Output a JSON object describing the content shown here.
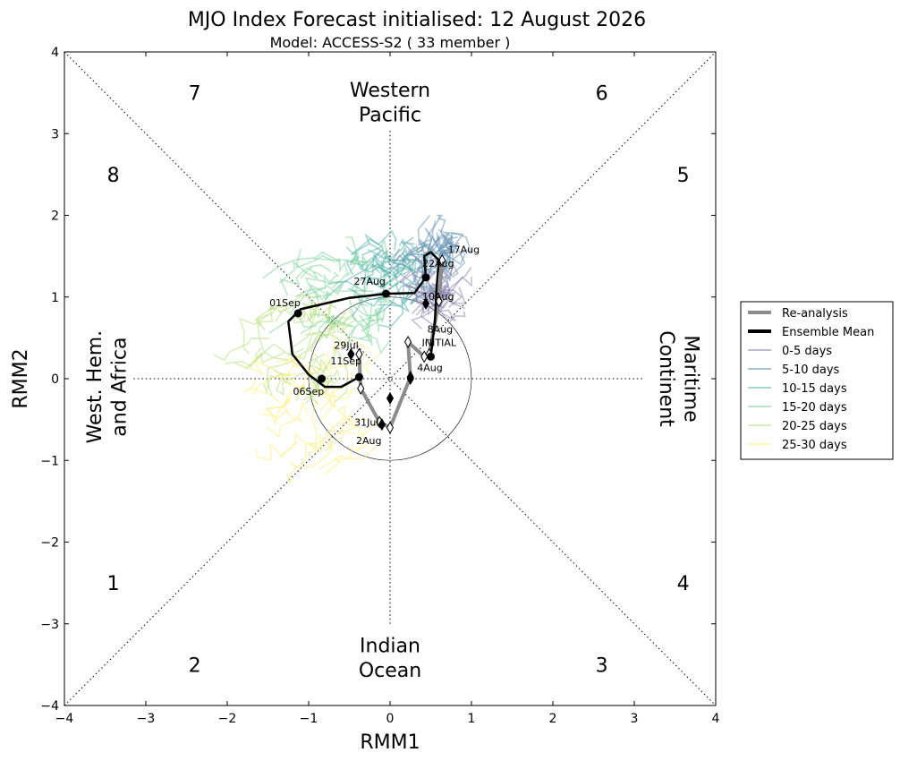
{
  "chart_data": {
    "type": "scatter",
    "title": "MJO Index Forecast initialised:  12  August 2026",
    "subtitle": "Model: ACCESS-S2 ( 33 member )",
    "xlabel": "RMM1",
    "ylabel": "RMM2",
    "xlim": [
      -4,
      4
    ],
    "ylim": [
      -4,
      4
    ],
    "xticks": [
      "−4",
      "−3",
      "−2",
      "−1",
      "0",
      "1",
      "2",
      "3",
      "4"
    ],
    "yticks": [
      "−4",
      "−3",
      "−2",
      "−1",
      "0",
      "1",
      "2",
      "3",
      "4"
    ],
    "phases": [
      {
        "label": "1",
        "x": -3.4,
        "y": -2.5
      },
      {
        "label": "2",
        "x": -2.4,
        "y": -3.5
      },
      {
        "label": "3",
        "x": 2.6,
        "y": -3.5
      },
      {
        "label": "4",
        "x": 3.6,
        "y": -2.5
      },
      {
        "label": "5",
        "x": 3.6,
        "y": 2.5
      },
      {
        "label": "6",
        "x": 2.6,
        "y": 3.5
      },
      {
        "label": "7",
        "x": -2.4,
        "y": 3.5
      },
      {
        "label": "8",
        "x": -3.4,
        "y": 2.5
      }
    ],
    "regions": {
      "top": [
        "Western",
        "Pacific"
      ],
      "bottom": [
        "Indian",
        "Ocean"
      ],
      "left": [
        "West. Hem.",
        "and Africa"
      ],
      "right": [
        "Maritime",
        "Continent"
      ]
    },
    "reanalysis": {
      "name": "Re-analysis",
      "color": "#8c8c8c",
      "points": [
        {
          "x": -0.38,
          "y": 0.3
        },
        {
          "x": -0.36,
          "y": -0.12
        },
        {
          "x": -0.13,
          "y": -0.53
        },
        {
          "x": 0.0,
          "y": -0.6
        },
        {
          "x": 0.25,
          "y": 0.02
        },
        {
          "x": 0.22,
          "y": 0.45
        },
        {
          "x": 0.42,
          "y": 0.27
        },
        {
          "x": 0.48,
          "y": 0.3
        },
        {
          "x": 0.6,
          "y": 0.95
        },
        {
          "x": 0.64,
          "y": 1.45
        }
      ],
      "labels": [
        {
          "text": "29Jul",
          "x": -0.38,
          "y": 0.3
        },
        {
          "text": "31Jul",
          "x": -0.13,
          "y": -0.53
        },
        {
          "text": "2Aug",
          "x": 0.0,
          "y": -0.6
        },
        {
          "text": "4Aug",
          "x": 0.42,
          "y": 0.27
        },
        {
          "text": "8Aug",
          "x": 0.48,
          "y": 0.3
        },
        {
          "text": "INITIAL",
          "x": 0.48,
          "y": 0.3
        }
      ]
    },
    "ensemble_mean": {
      "name": "Ensemble Mean",
      "color": "#000000",
      "points": [
        {
          "x": 0.5,
          "y": 0.27
        },
        {
          "x": 0.55,
          "y": 0.7
        },
        {
          "x": 0.57,
          "y": 1.1
        },
        {
          "x": 0.6,
          "y": 1.45
        },
        {
          "x": 0.5,
          "y": 1.55
        },
        {
          "x": 0.42,
          "y": 1.5
        },
        {
          "x": 0.44,
          "y": 1.24
        },
        {
          "x": 0.3,
          "y": 1.05
        },
        {
          "x": -0.05,
          "y": 1.04
        },
        {
          "x": -0.5,
          "y": 0.99
        },
        {
          "x": -1.1,
          "y": 0.85
        },
        {
          "x": -1.25,
          "y": 0.7
        },
        {
          "x": -1.2,
          "y": 0.3
        },
        {
          "x": -1.0,
          "y": 0.05
        },
        {
          "x": -0.8,
          "y": -0.1
        },
        {
          "x": -0.6,
          "y": -0.1
        },
        {
          "x": -0.38,
          "y": 0.02
        }
      ],
      "markers": [
        {
          "x": 0.5,
          "y": 0.27,
          "shape": "circle"
        },
        {
          "x": 0.44,
          "y": 1.24,
          "shape": "circle"
        },
        {
          "x": -0.05,
          "y": 1.04,
          "shape": "circle"
        },
        {
          "x": -1.13,
          "y": 0.8,
          "shape": "circle"
        },
        {
          "x": -0.84,
          "y": 0.0,
          "shape": "circle"
        },
        {
          "x": -0.38,
          "y": 0.02,
          "shape": "circle"
        },
        {
          "x": 0.44,
          "y": 0.92,
          "shape": "diamond"
        },
        {
          "x": 0.0,
          "y": -0.24,
          "shape": "diamond"
        },
        {
          "x": -0.1,
          "y": -0.56,
          "shape": "diamond"
        },
        {
          "x": 0.25,
          "y": 0.0,
          "shape": "diamond"
        },
        {
          "x": -0.48,
          "y": 0.3,
          "shape": "diamond"
        }
      ],
      "labels": [
        {
          "text": "17Aug",
          "x": 0.6,
          "y": 1.45
        },
        {
          "text": "22Aug",
          "x": 0.44,
          "y": 1.24
        },
        {
          "text": "10Aug",
          "x": 0.44,
          "y": 0.92
        },
        {
          "text": "27Aug",
          "x": -0.05,
          "y": 1.04
        },
        {
          "text": "01Sep",
          "x": -1.13,
          "y": 0.8
        },
        {
          "text": "11Sep",
          "x": -0.38,
          "y": 0.02
        },
        {
          "text": "06Sep",
          "x": -0.84,
          "y": 0.0
        }
      ]
    },
    "ensemble_members": {
      "count": 33,
      "bands": [
        {
          "name": "0-5 days",
          "color": "#8a7fb0"
        },
        {
          "name": "5-10 days",
          "color": "#5f8fb0"
        },
        {
          "name": "10-15 days",
          "color": "#4fb0aa"
        },
        {
          "name": "15-20 days",
          "color": "#7ed49a"
        },
        {
          "name": "20-25 days",
          "color": "#b8e07a"
        },
        {
          "name": "25-30 days",
          "color": "#fff07a"
        }
      ]
    },
    "legend": {
      "position": "right",
      "entries": [
        {
          "name": "Re-analysis",
          "color": "#8c8c8c",
          "width": 4
        },
        {
          "name": "Ensemble Mean",
          "color": "#000000",
          "width": 4
        },
        {
          "name": "0-5 days",
          "color": "#8a7fb0",
          "width": 1.5
        },
        {
          "name": "5-10 days",
          "color": "#5f8fb0",
          "width": 1.5
        },
        {
          "name": "10-15 days",
          "color": "#4fb0aa",
          "width": 1.5
        },
        {
          "name": "15-20 days",
          "color": "#7ed49a",
          "width": 1.5
        },
        {
          "name": "20-25 days",
          "color": "#b8e07a",
          "width": 1.5
        },
        {
          "name": "25-30 days",
          "color": "#fff07a",
          "width": 1.5
        }
      ]
    },
    "grid": false,
    "unit_circle": true
  }
}
